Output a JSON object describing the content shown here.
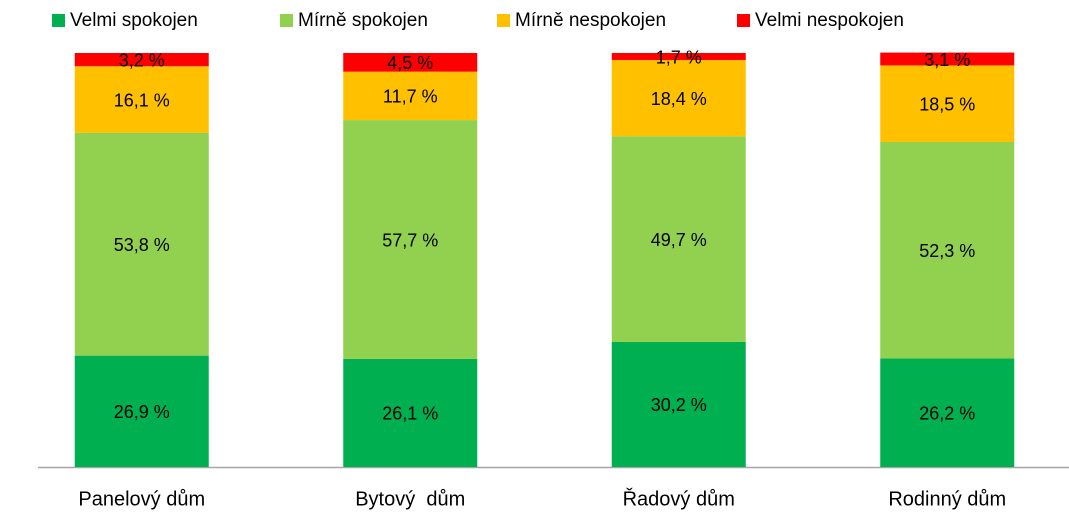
{
  "chart_data": {
    "type": "stacked_bar",
    "categories": [
      "Panelový dům",
      "Bytový  dům",
      "Řadový dům",
      "Rodinný dům"
    ],
    "series": [
      {
        "name": "Velmi spokojen",
        "color": "#00b050",
        "values": [
          26.9,
          26.1,
          30.2,
          26.2
        ],
        "value_labels": [
          "26,9 %",
          "26,1 %",
          "30,2 %",
          "26,2 %"
        ]
      },
      {
        "name": "Mírně spokojen",
        "color": "#92d050",
        "values": [
          53.8,
          57.7,
          49.7,
          52.3
        ],
        "value_labels": [
          "53,8 %",
          "57,7 %",
          "49,7 %",
          "52,3 %"
        ]
      },
      {
        "name": "Mírně nespokojen",
        "color": "#ffc000",
        "values": [
          16.1,
          11.7,
          18.4,
          18.5
        ],
        "value_labels": [
          "16,1 %",
          "11,7 %",
          "18,4 %",
          "18,5 %"
        ]
      },
      {
        "name": "Velmi nespokojen",
        "color": "#ff0000",
        "values": [
          3.2,
          4.5,
          1.7,
          3.1
        ],
        "value_labels": [
          "3,2 %",
          "4,5 %",
          "1,7 %",
          "3,1 %"
        ]
      }
    ],
    "ylim": [
      0,
      100
    ],
    "legend": "top"
  }
}
